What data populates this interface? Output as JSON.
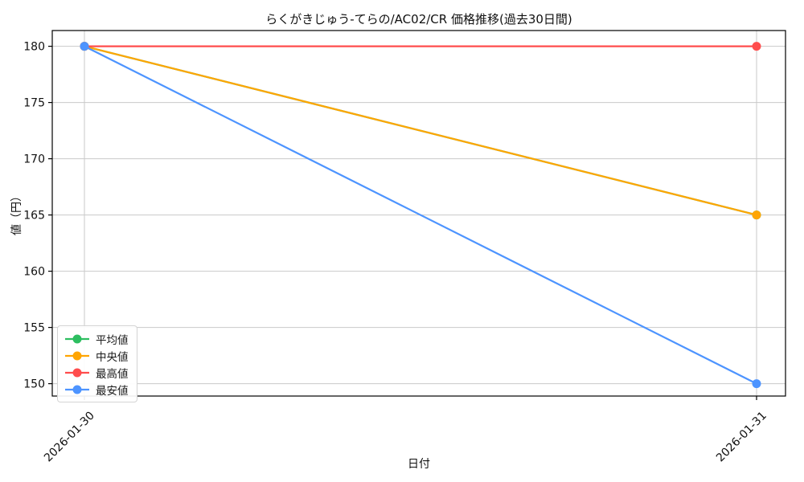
{
  "chart_data": {
    "type": "line",
    "title": "らくがきじゅう-てらの/AC02/CR 価格推移(過去30日間)",
    "xlabel": "日付",
    "ylabel": "値（円）",
    "categories": [
      "2026-01-30",
      "2026-01-31"
    ],
    "series": [
      {
        "name": "平均値",
        "color": "#2dbe60",
        "values": [
          180,
          165
        ]
      },
      {
        "name": "中央値",
        "color": "#ffa502",
        "values": [
          180,
          165
        ]
      },
      {
        "name": "最高値",
        "color": "#ff4d4d",
        "values": [
          180,
          180
        ]
      },
      {
        "name": "最安値",
        "color": "#4d94ff",
        "values": [
          180,
          150
        ]
      }
    ],
    "ylim": [
      148.9,
      181.4
    ],
    "yticks": [
      150,
      155,
      160,
      165,
      170,
      175,
      180
    ],
    "grid": true,
    "grid_color": "#c9c9c9",
    "spine_color": "#000000",
    "legend_position": "lower left"
  }
}
